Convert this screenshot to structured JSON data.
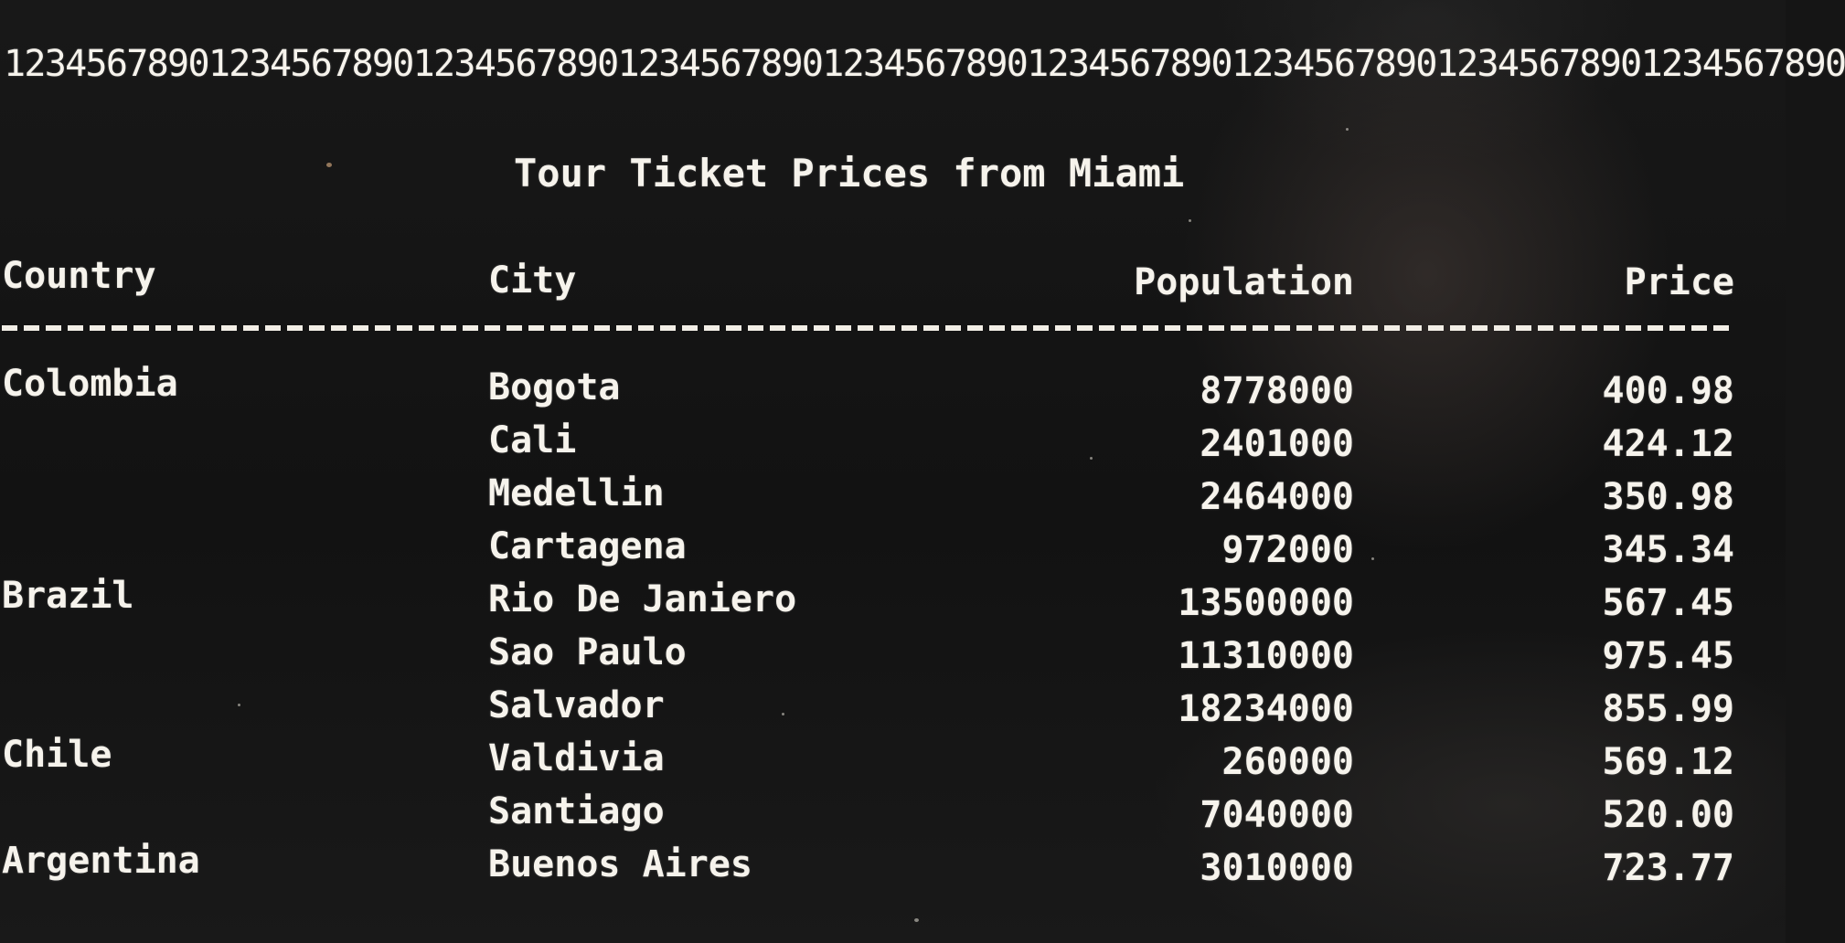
{
  "console": {
    "ruler": "123456789012345678901234567890123456789012345678901234567890123456789012345678901234567890",
    "title": "Tour Ticket Prices from Miami",
    "headers": {
      "country": "Country",
      "city": "City",
      "population": "Population",
      "price": "Price"
    },
    "rows": [
      {
        "country": "Colombia",
        "city": "Bogota",
        "population": "8778000",
        "price": "400.98"
      },
      {
        "country": "",
        "city": "Cali",
        "population": "2401000",
        "price": "424.12"
      },
      {
        "country": "",
        "city": "Medellin",
        "population": "2464000",
        "price": "350.98"
      },
      {
        "country": "",
        "city": "Cartagena",
        "population": "972000",
        "price": "345.34"
      },
      {
        "country": "Brazil",
        "city": "Rio De Janiero",
        "population": "13500000",
        "price": "567.45"
      },
      {
        "country": "",
        "city": "Sao Paulo",
        "population": "11310000",
        "price": "975.45"
      },
      {
        "country": "",
        "city": "Salvador",
        "population": "18234000",
        "price": "855.99"
      },
      {
        "country": "Chile",
        "city": "Valdivia",
        "population": "260000",
        "price": "569.12"
      },
      {
        "country": "",
        "city": "Santiago",
        "population": "7040000",
        "price": "520.00"
      },
      {
        "country": "Argentina",
        "city": "Buenos Aires",
        "population": "3010000",
        "price": "723.77"
      }
    ]
  }
}
